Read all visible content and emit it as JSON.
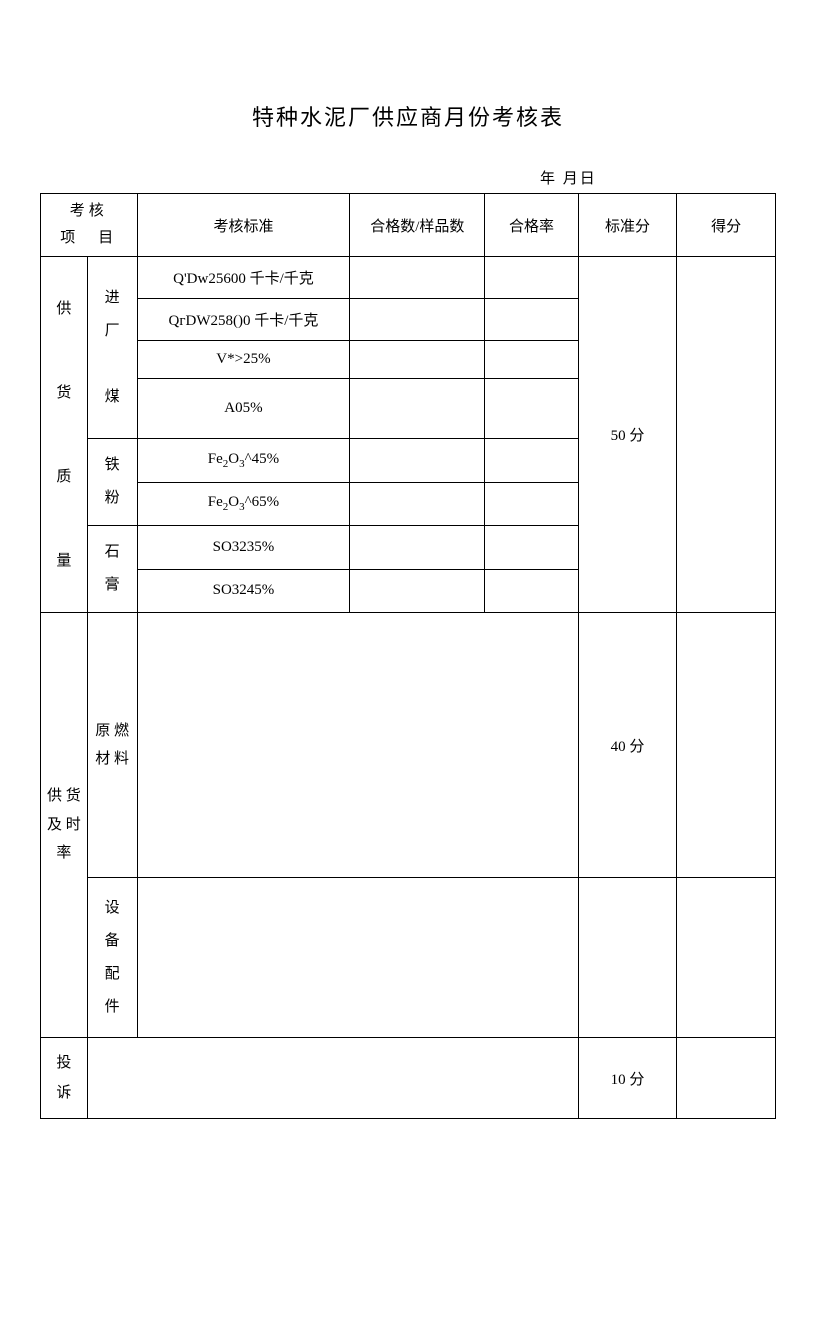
{
  "title": "特种水泥厂供应商月份考核表",
  "date_label": "年 月日",
  "headers": {
    "category": "考核\n项　目",
    "standard": "考核标准",
    "ratio": "合格数/样品数",
    "rate": "合格率",
    "std_score": "标准分",
    "result": "得分"
  },
  "sections": {
    "quality": {
      "label": "供\n货\n质\n量",
      "sub_coal": "进\n厂\n煤",
      "sub_iron": "铁\n粉",
      "sub_gypsum": "石\n膏",
      "standards": [
        "Q'Dw25600 千卡/千克",
        "QгDW258()0 千卡/千克",
        "V*>25%",
        "A05%",
        "Fe₂O₃^45%",
        "Fe₂O₃^65%",
        "SO3235%",
        "SO3245%"
      ],
      "score": "50 分"
    },
    "timeliness": {
      "label": "供 货\n及 时\n率",
      "sub_material": "原 燃\n材 料",
      "sub_equipment": "设\n备\n配\n件",
      "score": "40 分"
    },
    "complaint": {
      "label": "投\n诉",
      "score": "10 分"
    }
  }
}
